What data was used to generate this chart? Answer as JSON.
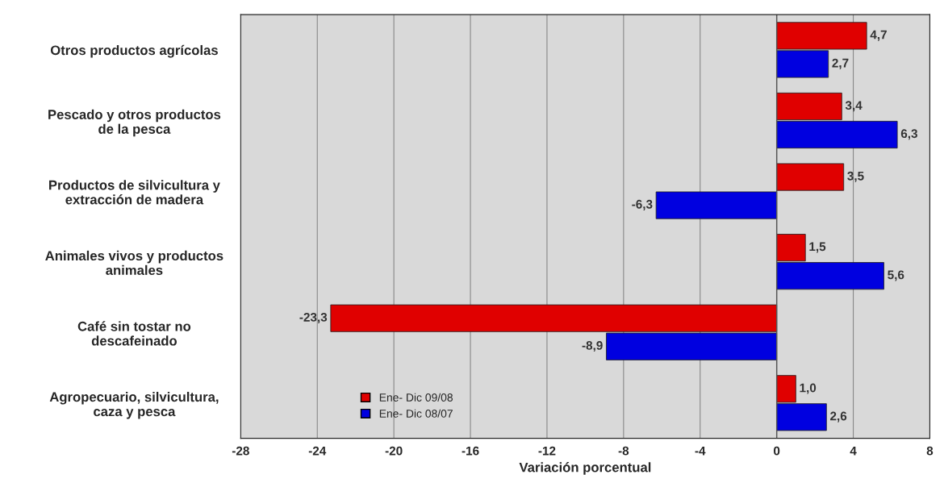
{
  "chart_data": {
    "type": "bar",
    "orientation": "horizontal",
    "xlabel": "Variación porcentual",
    "categories": [
      "Otros productos agrícolas",
      "Pescado y otros productos\nde la pesca",
      "Productos de silvicultura y\nextracción de madera",
      "Animales vivos y productos\nanimales",
      "Café sin tostar no\ndescafeinado",
      "Agropecuario, silvicultura,\ncaza y pesca"
    ],
    "series": [
      {
        "name": "Ene- Dic 09/08",
        "color": "#e00000",
        "values": [
          4.7,
          3.4,
          3.5,
          1.5,
          -23.3,
          1.0
        ],
        "value_labels": [
          "4,7",
          "3,4",
          "3,5",
          "1,5",
          "-23,3",
          "1,0"
        ]
      },
      {
        "name": "Ene- Dic 08/07",
        "color": "#0000e0",
        "values": [
          2.7,
          6.3,
          -6.3,
          5.6,
          -8.9,
          2.6
        ],
        "value_labels": [
          "2,7",
          "6,3",
          "-6,3",
          "5,6",
          "-8,9",
          "2,6"
        ]
      }
    ],
    "xlim": [
      -28,
      8
    ],
    "xticks": [
      -28,
      -24,
      -20,
      -16,
      -12,
      -8,
      -4,
      0,
      4,
      8
    ],
    "grid": "x",
    "legend": "bottom left"
  }
}
